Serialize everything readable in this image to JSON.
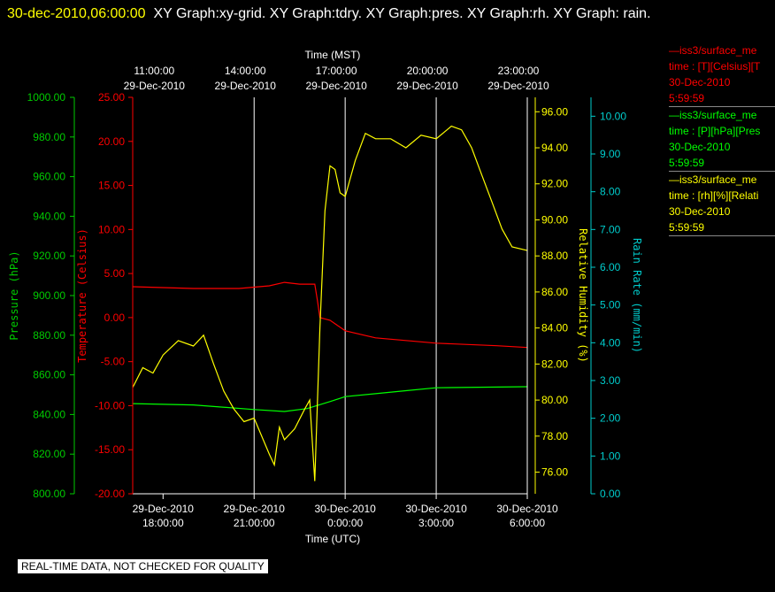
{
  "header": {
    "timestamp": "30-dec-2010,06:00:00",
    "title_rest": "XY Graph:xy-grid.  XY Graph:tdry.  XY Graph:pres.  XY Graph:rh.  XY Graph:  rain."
  },
  "disclaimer": "REAL-TIME DATA, NOT CHECKED FOR QUALITY",
  "legend": [
    {
      "line1": "—iss3/surface_me",
      "line2": "time : [T][Celsius][T",
      "line3": "30-Dec-2010",
      "line4": "5:59:59",
      "color": "#ff0000"
    },
    {
      "line1": "—iss3/surface_me",
      "line2": "time : [P][hPa][Pres",
      "line3": "30-Dec-2010",
      "line4": "5:59:59",
      "color": "#00ff00"
    },
    {
      "line1": "—iss3/surface_me",
      "line2": "time : [rh][%][Relati",
      "line3": "30-Dec-2010",
      "line4": "5:59:59",
      "color": "#ffff00"
    }
  ],
  "chart_data": {
    "type": "line",
    "x_bottom_label": "Time (UTC)",
    "x_top_label": "Time (MST)",
    "x_range": [
      "2010-12-29 17:00",
      "2010-12-30 06:00"
    ],
    "x_ticks_utc": [
      {
        "date": "29-Dec-2010",
        "time": "18:00:00"
      },
      {
        "date": "29-Dec-2010",
        "time": "21:00:00"
      },
      {
        "date": "30-Dec-2010",
        "time": "0:00:00"
      },
      {
        "date": "30-Dec-2010",
        "time": "3:00:00"
      },
      {
        "date": "30-Dec-2010",
        "time": "6:00:00"
      }
    ],
    "x_ticks_mst": [
      {
        "time": "11:00:00",
        "date": "29-Dec-2010"
      },
      {
        "time": "14:00:00",
        "date": "29-Dec-2010"
      },
      {
        "time": "17:00:00",
        "date": "29-Dec-2010"
      },
      {
        "time": "20:00:00",
        "date": "29-Dec-2010"
      },
      {
        "time": "23:00:00",
        "date": "29-Dec-2010"
      }
    ],
    "grid": true,
    "axes": {
      "pressure": {
        "label": "Pressure (hPa)",
        "color": "#00cc00",
        "range": [
          800,
          1000
        ],
        "ticks": [
          "800.00",
          "820.00",
          "840.00",
          "860.00",
          "880.00",
          "900.00",
          "920.00",
          "940.00",
          "960.00",
          "980.00",
          "1000.00"
        ]
      },
      "temperature": {
        "label": "Temperature (Celsius)",
        "color": "#ff0000",
        "range": [
          -20,
          25
        ],
        "ticks": [
          "-20.00",
          "-15.00",
          "-10.00",
          "-5.00",
          "0.00",
          "5.00",
          "10.00",
          "15.00",
          "20.00",
          "25.00"
        ]
      },
      "rh": {
        "label": "Relative Humidity (%)",
        "color": "#ffff00",
        "range": [
          74.8,
          96.8
        ],
        "ticks": [
          "76.00",
          "78.00",
          "80.00",
          "82.00",
          "84.00",
          "86.00",
          "88.00",
          "90.00",
          "92.00",
          "94.00",
          "96.00"
        ]
      },
      "rain": {
        "label": "Rain Rate (mm/min)",
        "color": "#00cccc",
        "range": [
          0,
          10.5
        ],
        "ticks": [
          "0.00",
          "1.00",
          "2.00",
          "3.00",
          "4.00",
          "5.00",
          "6.00",
          "7.00",
          "8.00",
          "9.00",
          "10.00"
        ]
      }
    },
    "series": [
      {
        "name": "iss3/surface_me  time : [T][Celsius][T",
        "axis": "temperature",
        "color": "#ff0000",
        "x": [
          "2010-12-29 17:00",
          "2010-12-29 19:00",
          "2010-12-29 20:30",
          "2010-12-29 21:30",
          "2010-12-29 22:00",
          "2010-12-29 22:30",
          "2010-12-29 23:00",
          "2010-12-29 23:05",
          "2010-12-29 23:10",
          "2010-12-29 23:30",
          "2010-12-30 00:00",
          "2010-12-30 01:00",
          "2010-12-30 03:00",
          "2010-12-30 05:00",
          "2010-12-30 06:00"
        ],
        "values": [
          3.5,
          3.3,
          3.3,
          3.6,
          4.0,
          3.8,
          3.8,
          2.0,
          0.0,
          -0.3,
          -1.5,
          -2.3,
          -2.9,
          -3.2,
          -3.4
        ]
      },
      {
        "name": "iss3/surface_me  time : [P][hPa][Pres",
        "axis": "pressure",
        "color": "#00ff00",
        "x": [
          "2010-12-29 17:00",
          "2010-12-29 19:00",
          "2010-12-29 21:00",
          "2010-12-29 22:00",
          "2010-12-29 22:45",
          "2010-12-29 23:30",
          "2010-12-30 00:00",
          "2010-12-30 01:00",
          "2010-12-30 02:00",
          "2010-12-30 03:00",
          "2010-12-30 06:00"
        ],
        "values": [
          845.5,
          844.8,
          842.5,
          841.5,
          843.0,
          846.5,
          849.0,
          850.5,
          852.0,
          853.5,
          854.0
        ]
      },
      {
        "name": "iss3/surface_me  time : [rh][%][Relati",
        "axis": "rh",
        "color": "#ffff00",
        "x": [
          "2010-12-29 17:00",
          "2010-12-29 17:20",
          "2010-12-29 17:40",
          "2010-12-29 18:00",
          "2010-12-29 18:30",
          "2010-12-29 19:00",
          "2010-12-29 19:20",
          "2010-12-29 19:40",
          "2010-12-29 20:00",
          "2010-12-29 20:20",
          "2010-12-29 20:40",
          "2010-12-29 21:00",
          "2010-12-29 21:30",
          "2010-12-29 21:40",
          "2010-12-29 21:50",
          "2010-12-29 22:00",
          "2010-12-29 22:20",
          "2010-12-29 22:40",
          "2010-12-29 22:50",
          "2010-12-29 23:00",
          "2010-12-29 23:10",
          "2010-12-29 23:20",
          "2010-12-29 23:30",
          "2010-12-29 23:40",
          "2010-12-29 23:50",
          "2010-12-30 00:00",
          "2010-12-30 00:20",
          "2010-12-30 00:40",
          "2010-12-30 01:00",
          "2010-12-30 01:30",
          "2010-12-30 02:00",
          "2010-12-30 02:30",
          "2010-12-30 03:00",
          "2010-12-30 03:30",
          "2010-12-30 03:50",
          "2010-12-30 04:10",
          "2010-12-30 04:30",
          "2010-12-30 04:50",
          "2010-12-30 05:10",
          "2010-12-30 05:30",
          "2010-12-30 06:00"
        ],
        "values": [
          80.7,
          81.8,
          81.5,
          82.5,
          83.3,
          83.0,
          83.6,
          82.0,
          80.5,
          79.5,
          78.8,
          79.0,
          77.0,
          76.4,
          78.5,
          77.8,
          78.4,
          79.5,
          80.0,
          75.5,
          84.0,
          90.5,
          93.0,
          92.8,
          91.5,
          91.3,
          93.3,
          94.8,
          94.5,
          94.5,
          94.0,
          94.7,
          94.5,
          95.2,
          95.0,
          94.0,
          92.5,
          91.0,
          89.5,
          88.5,
          88.3
        ]
      }
    ]
  }
}
